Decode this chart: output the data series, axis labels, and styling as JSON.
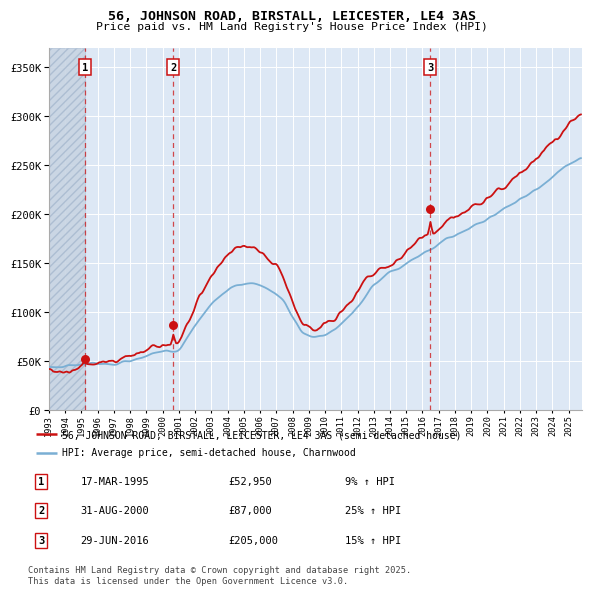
{
  "title_line1": "56, JOHNSON ROAD, BIRSTALL, LEICESTER, LE4 3AS",
  "title_line2": "Price paid vs. HM Land Registry's House Price Index (HPI)",
  "ylim": [
    0,
    370000
  ],
  "yticks": [
    0,
    50000,
    100000,
    150000,
    200000,
    250000,
    300000,
    350000
  ],
  "ytick_labels": [
    "£0",
    "£50K",
    "£100K",
    "£150K",
    "£200K",
    "£250K",
    "£300K",
    "£350K"
  ],
  "background_color": "#dde8f5",
  "hpi_color": "#7aafd4",
  "price_paid_color": "#cc1111",
  "sale_dates": [
    1995.21,
    2000.66,
    2016.49
  ],
  "sale_prices": [
    52950,
    87000,
    205000
  ],
  "sale_labels": [
    "1",
    "2",
    "3"
  ],
  "vline_color": "#cc1111",
  "legend_line1": "56, JOHNSON ROAD, BIRSTALL, LEICESTER, LE4 3AS (semi-detached house)",
  "legend_line2": "HPI: Average price, semi-detached house, Charnwood",
  "table_rows": [
    {
      "num": "1",
      "date": "17-MAR-1995",
      "price": "£52,950",
      "hpi": "9% ↑ HPI"
    },
    {
      "num": "2",
      "date": "31-AUG-2000",
      "price": "£87,000",
      "hpi": "25% ↑ HPI"
    },
    {
      "num": "3",
      "date": "29-JUN-2016",
      "price": "£205,000",
      "hpi": "15% ↑ HPI"
    }
  ],
  "footnote": "Contains HM Land Registry data © Crown copyright and database right 2025.\nThis data is licensed under the Open Government Licence v3.0.",
  "xmin": 1993.0,
  "xmax": 2025.8
}
